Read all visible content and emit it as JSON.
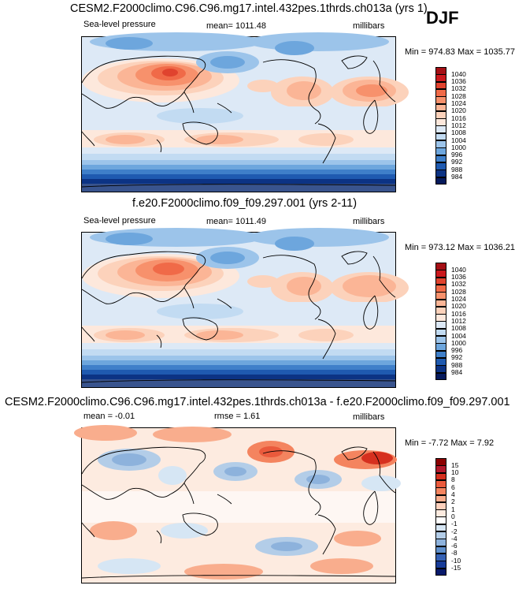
{
  "season": "DJF",
  "panels": [
    {
      "title": "CESM2.F2000climo.C96.C96.mg17.intel.432pes.1thrds.ch013a (yrs 1)",
      "left": "Sea-level pressure",
      "center": "mean= 1011.48",
      "right": "millibars",
      "stats": "Min = 974.83 Max = 1035.77",
      "levels": [
        "1040",
        "1036",
        "1032",
        "1028",
        "1024",
        "1020",
        "1016",
        "1012",
        "1008",
        "1004",
        "1000",
        "996",
        "992",
        "988",
        "984"
      ],
      "colors": [
        "#a50f15",
        "#cb181d",
        "#e0432e",
        "#f06a48",
        "#f7916c",
        "#fbb596",
        "#fcd2bb",
        "#fde8dc",
        "#dde9f6",
        "#c2dbf2",
        "#9cc4ea",
        "#6da6dd",
        "#3f7fc9",
        "#1f5ab0",
        "#0c3384",
        "#061a5c"
      ]
    },
    {
      "title": "f.e20.F2000climo.f09_f09.297.001 (yrs 2-11)",
      "left": "Sea-level pressure",
      "center": "mean= 1011.49",
      "right": "millibars",
      "stats": "Min = 973.12 Max = 1036.21",
      "levels": [
        "1040",
        "1036",
        "1032",
        "1028",
        "1024",
        "1020",
        "1016",
        "1012",
        "1008",
        "1004",
        "1000",
        "996",
        "992",
        "988",
        "984"
      ],
      "colors": [
        "#a50f15",
        "#cb181d",
        "#e0432e",
        "#f06a48",
        "#f7916c",
        "#fbb596",
        "#fcd2bb",
        "#fde8dc",
        "#dde9f6",
        "#c2dbf2",
        "#9cc4ea",
        "#6da6dd",
        "#3f7fc9",
        "#1f5ab0",
        "#0c3384",
        "#061a5c"
      ]
    },
    {
      "title": "CESM2.F2000climo.C96.C96.mg17.intel.432pes.1thrds.ch013a - f.e20.F2000climo.f09_f09.297.001",
      "left": "mean =  -0.01",
      "center": "rmse =   1.61",
      "right": "millibars",
      "stats": "Min =  -7.72 Max =   7.92",
      "levels": [
        "15",
        "10",
        "8",
        "6",
        "4",
        "2",
        "1",
        "0",
        "-1",
        "-2",
        "-4",
        "-6",
        "-8",
        "-10",
        "-15"
      ],
      "colors": [
        "#8b0000",
        "#b2182b",
        "#d6301f",
        "#ea5a3c",
        "#f4845f",
        "#f9ad8d",
        "#fdd0bc",
        "#fdebe0",
        "#ffffff",
        "#d6e6f4",
        "#b3cde8",
        "#8db2dc",
        "#5f8fcb",
        "#3561b4",
        "#183c98",
        "#08196b"
      ]
    }
  ]
}
